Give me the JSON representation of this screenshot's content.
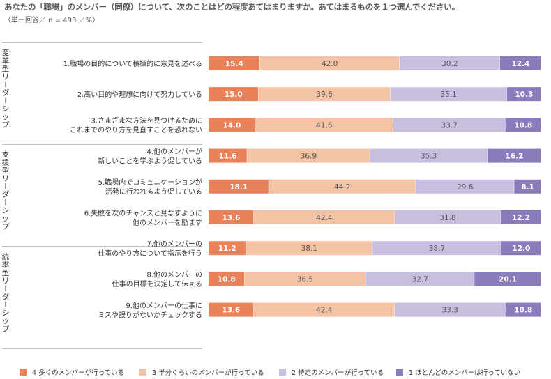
{
  "title": "あなたの「職場」のメンバー（同僚）について、次のことはどの程度あてはまりますか。あてはまるものを１つ選んでください。",
  "note": "〈単一回答／ n = 493 ／%〉",
  "legend": [
    {
      "label": "4 多くのメンバーが行っている",
      "color": "#e8825a"
    },
    {
      "label": "3 半分くらいのメンバーが行っている",
      "color": "#f4c2a4"
    },
    {
      "label": "2 特定のメンバーが行っている",
      "color": "#c8bfe0"
    },
    {
      "label": "1 ほとんどのメンバーは行っていない",
      "color": "#8b7bbb"
    }
  ],
  "chart_data": {
    "type": "bar",
    "orientation": "horizontal",
    "stacked": true,
    "unit": "%",
    "series_names": [
      "4 多くのメンバーが行っている",
      "3 半分くらいのメンバーが行っている",
      "2 特定のメンバーが行っている",
      "1 ほとんどのメンバーは行っていない"
    ],
    "series_colors": [
      "#e8825a",
      "#f4c2a4",
      "#c8bfe0",
      "#8b7bbb"
    ],
    "groups": [
      {
        "name": "変革型リーダーシップ",
        "items": [
          {
            "label_lines": [
              "1.職場の目的について積極的に意見を述べる"
            ],
            "values": [
              15.4,
              42.0,
              30.2,
              12.4
            ]
          },
          {
            "label_lines": [
              "2.高い目的や理想に向けて努力している"
            ],
            "values": [
              15.0,
              39.6,
              35.1,
              10.3
            ]
          },
          {
            "label_lines": [
              "3.さまざまな方法を見つけるために",
              "これまでのやり方を見直すことを恐れない"
            ],
            "values": [
              14.0,
              41.6,
              33.7,
              10.8
            ]
          }
        ]
      },
      {
        "name": "支援型リーダーシップ",
        "items": [
          {
            "label_lines": [
              "4.他のメンバーが",
              "新しいことを学ぶよう促している"
            ],
            "values": [
              11.6,
              36.9,
              35.3,
              16.2
            ]
          },
          {
            "label_lines": [
              "5.職場内でコミュニケーションが",
              "活発に行われるよう促している"
            ],
            "values": [
              18.1,
              44.2,
              29.6,
              8.1
            ]
          },
          {
            "label_lines": [
              "6.失敗を次のチャンスと見なすように",
              "他のメンバーを励ます"
            ],
            "values": [
              13.6,
              42.4,
              31.8,
              12.2
            ]
          }
        ]
      },
      {
        "name": "統率型リーダーシップ",
        "items": [
          {
            "label_lines": [
              "7.他のメンバーの",
              "仕事のやり方について指示を行う"
            ],
            "values": [
              11.2,
              38.1,
              38.7,
              12.0
            ]
          },
          {
            "label_lines": [
              "8.他のメンバーの",
              "仕事の目標を決定して伝える"
            ],
            "values": [
              10.8,
              36.5,
              32.7,
              20.1
            ]
          },
          {
            "label_lines": [
              "9.他のメンバーの仕事に",
              "ミスや誤りがないかチェックする"
            ],
            "values": [
              13.6,
              42.4,
              33.3,
              10.8
            ]
          }
        ]
      }
    ]
  }
}
